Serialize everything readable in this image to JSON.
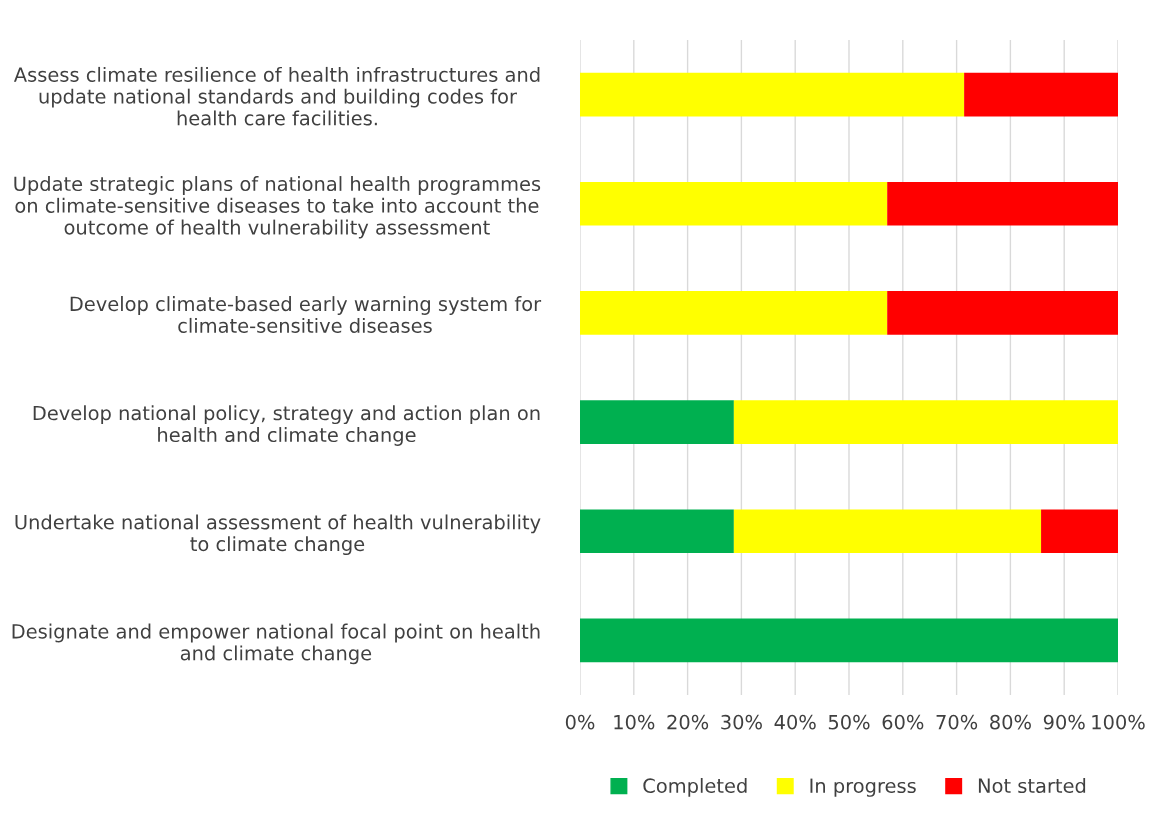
{
  "chart_data": {
    "type": "bar",
    "orientation": "horizontal",
    "stacked": true,
    "categories": [
      "Assess climate resilience of health infrastructures and\nupdate national standards and building codes for\nhealth care facilities.",
      "Update strategic plans of national health programmes\non climate-sensitive diseases to take into account the\noutcome of health vulnerability assessment",
      "Develop climate-based early warning system for\nclimate-sensitive diseases",
      "Develop national policy, strategy and action plan on\nhealth and climate change",
      "Undertake national assessment of health vulnerability\nto climate change",
      "Designate and empower national focal point on health\nand climate change"
    ],
    "series": [
      {
        "name": "Completed",
        "color": "#00b050",
        "values": [
          0,
          0,
          0,
          28.6,
          28.6,
          100
        ]
      },
      {
        "name": "In progress",
        "color": "#ffff00",
        "values": [
          71.4,
          57.1,
          57.1,
          71.4,
          57.1,
          0
        ]
      },
      {
        "name": "Not started",
        "color": "#ff0000",
        "values": [
          28.6,
          42.9,
          42.9,
          0,
          14.3,
          0
        ]
      }
    ],
    "xlim": [
      0,
      100
    ],
    "xticks": [
      {
        "value": 0,
        "label": "0%"
      },
      {
        "value": 10,
        "label": "10%"
      },
      {
        "value": 20,
        "label": "20%"
      },
      {
        "value": 30,
        "label": "30%"
      },
      {
        "value": 40,
        "label": "40%"
      },
      {
        "value": 50,
        "label": "50%"
      },
      {
        "value": 60,
        "label": "60%"
      },
      {
        "value": 70,
        "label": "70%"
      },
      {
        "value": 80,
        "label": "80%"
      },
      {
        "value": 90,
        "label": "90%"
      },
      {
        "value": 100,
        "label": "100%"
      }
    ],
    "grid": "x",
    "legend": "bottom"
  }
}
